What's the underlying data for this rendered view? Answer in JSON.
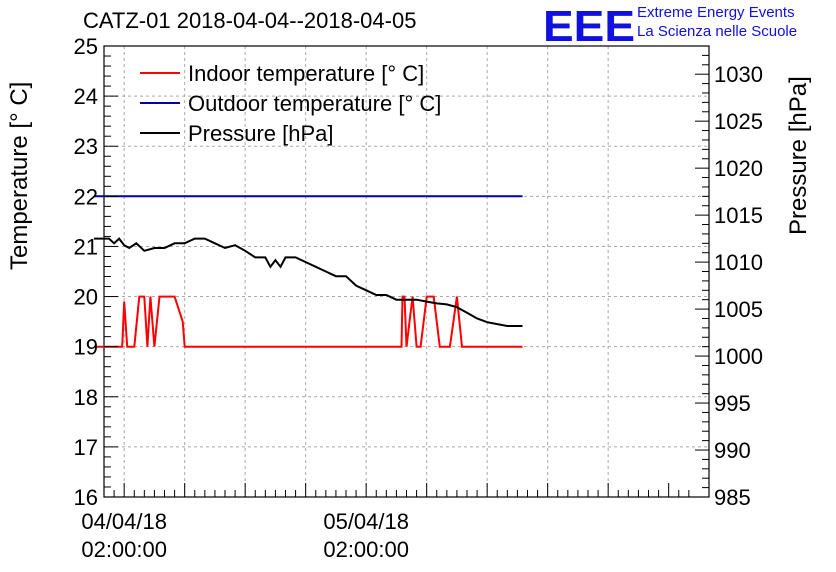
{
  "chart_data": {
    "type": "line",
    "title": "CATZ-01 2018-04-04--2018-04-05",
    "ylabel_left": "Temperature [° C]",
    "ylabel_right": "Pressure [hPa]",
    "ylim_left": [
      16,
      25
    ],
    "ylim_right": [
      985,
      1033
    ],
    "yticks_left": [
      "16",
      "17",
      "18",
      "19",
      "20",
      "21",
      "22",
      "23",
      "24",
      "25"
    ],
    "yticks_right": [
      "985",
      "990",
      "995",
      "1000",
      "1005",
      "1010",
      "1015",
      "1020",
      "1025",
      "1030"
    ],
    "x_unit": "hours since 04/04/18 00:00:00",
    "xlim": [
      0,
      60
    ],
    "xticks": [
      {
        "x": 2,
        "date": "04/04/18",
        "time": "02:00:00"
      },
      {
        "x": 26,
        "date": "05/04/18",
        "time": "02:00:00"
      }
    ],
    "legend_position": "top-left",
    "grid": true,
    "series": [
      {
        "name": "Indoor temperature [° C]",
        "color": "#ff0000",
        "axis": "left",
        "x": [
          -1,
          1.8,
          2.0,
          2.3,
          3.0,
          3.5,
          4.0,
          4.3,
          4.6,
          5.0,
          5.5,
          7.0,
          7.8,
          8.0,
          27.0,
          29.5,
          29.6,
          29.8,
          30.0,
          30.3,
          30.6,
          31.0,
          31.4,
          32.0,
          32.7,
          33.3,
          33.8,
          34.3,
          35.0,
          35.5,
          36.3,
          37.0,
          38.0,
          41.5
        ],
        "values": [
          19,
          19,
          19.9,
          19,
          19,
          20,
          20,
          19,
          20,
          19,
          20,
          20,
          19.5,
          19,
          19,
          19,
          20,
          20,
          19,
          19.5,
          20,
          19,
          19,
          20,
          20,
          19,
          19,
          19,
          20,
          19,
          19,
          19,
          19,
          19
        ]
      },
      {
        "name": "Outdoor temperature [° C]",
        "color": "#0000aa",
        "axis": "left",
        "x": [
          -1,
          41.5
        ],
        "values": [
          22,
          22
        ]
      },
      {
        "name": "Pressure [hPa]",
        "color": "#000000",
        "axis": "right",
        "x": [
          -1,
          0.5,
          1,
          1.5,
          2,
          2.5,
          3.2,
          4,
          5,
          6,
          7,
          8,
          9,
          10,
          11,
          12,
          13,
          14,
          15,
          16,
          16.5,
          17,
          17.5,
          18,
          19,
          20,
          21,
          22,
          23,
          24,
          25,
          26,
          27,
          28,
          29,
          30,
          31,
          32,
          33,
          34,
          35,
          36,
          37,
          38,
          39,
          40,
          41.5
        ],
        "values": [
          1012.5,
          1012.5,
          1012,
          1012.5,
          1011.8,
          1011.5,
          1012,
          1011.2,
          1011.5,
          1011.5,
          1012,
          1012,
          1012.5,
          1012.5,
          1012,
          1011.5,
          1011.8,
          1011.2,
          1010.5,
          1010.5,
          1009.5,
          1010.2,
          1009.5,
          1010.5,
          1010.5,
          1010,
          1009.5,
          1009,
          1008.5,
          1008.5,
          1007.5,
          1007,
          1006.5,
          1006.5,
          1006,
          1006,
          1006,
          1005.8,
          1005.6,
          1005.5,
          1005.2,
          1004.6,
          1004,
          1003.6,
          1003.4,
          1003.2,
          1003.2
        ]
      }
    ]
  },
  "logo": {
    "mark": "EEE",
    "line1": "Extreme Energy Events",
    "line2": "La Scienza nelle Scuole",
    "color": "#1010e0"
  }
}
